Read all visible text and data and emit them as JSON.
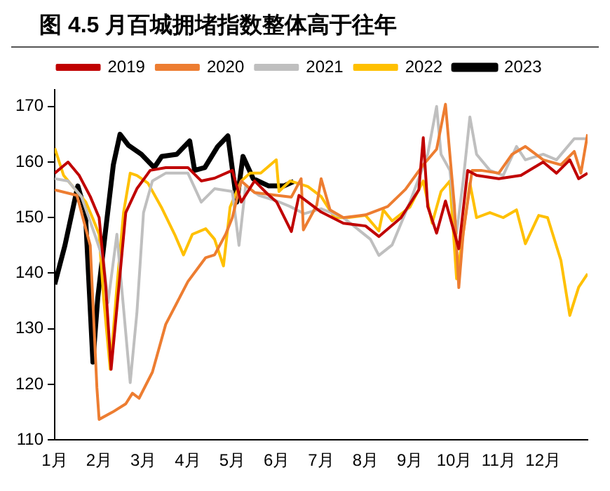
{
  "chart_data": {
    "type": "line",
    "title": "图 4.5 月百城拥堵指数整体高于往年",
    "xlim": [
      1,
      13
    ],
    "xticks": [
      {
        "value": 1,
        "label": "1月"
      },
      {
        "value": 2,
        "label": "2月"
      },
      {
        "value": 3,
        "label": "3月"
      },
      {
        "value": 4,
        "label": "4月"
      },
      {
        "value": 5,
        "label": "5月"
      },
      {
        "value": 6,
        "label": "6月"
      },
      {
        "value": 7,
        "label": "7月"
      },
      {
        "value": 8,
        "label": "8月"
      },
      {
        "value": 9,
        "label": "9月"
      },
      {
        "value": 10,
        "label": "10月"
      },
      {
        "value": 11,
        "label": "11月"
      },
      {
        "value": 12,
        "label": "12月"
      }
    ],
    "ylim": [
      110,
      173
    ],
    "yticks": [
      110,
      120,
      130,
      140,
      150,
      160,
      170
    ],
    "grid": false,
    "legend": "top",
    "marker": "none",
    "line_style": "solid",
    "series": [
      {
        "name": "2019",
        "color": "#c00000",
        "x": [
          1.0,
          1.3,
          1.55,
          1.8,
          2.0,
          2.15,
          2.27,
          2.4,
          2.6,
          2.85,
          3.15,
          3.5,
          4.0,
          4.3,
          4.6,
          5.0,
          5.2,
          5.5,
          5.8,
          6.0,
          6.33,
          6.5,
          7.0,
          7.5,
          8.0,
          8.3,
          8.8,
          9.2,
          9.3,
          9.4,
          9.6,
          9.8,
          10.1,
          10.3,
          10.5,
          11.0,
          11.5,
          12.0,
          12.3,
          12.6,
          12.8,
          13.0
        ],
        "values": [
          158,
          160,
          157.6,
          153.8,
          150,
          137.5,
          122.7,
          133.7,
          150.9,
          155.2,
          158.5,
          159,
          159,
          156.6,
          157.1,
          158.5,
          152.8,
          156.6,
          154.2,
          152.8,
          147.5,
          154,
          151,
          149,
          148.5,
          146.6,
          150,
          155,
          164.4,
          152,
          147.2,
          153,
          144.4,
          158.5,
          157.6,
          157,
          157.6,
          160,
          158,
          160.4,
          157,
          158
        ]
      },
      {
        "name": "2020",
        "color": "#ed7d31",
        "x": [
          1.0,
          1.5,
          1.8,
          1.95,
          2.0,
          2.3,
          2.6,
          2.75,
          2.9,
          3.2,
          3.5,
          4.0,
          4.4,
          4.6,
          4.85,
          5.0,
          5.2,
          5.5,
          6.0,
          6.33,
          6.55,
          6.6,
          6.9,
          7.0,
          7.2,
          7.5,
          8.0,
          8.5,
          8.9,
          9.3,
          9.6,
          9.8,
          10.0,
          10.1,
          10.2,
          10.4,
          10.6,
          11.0,
          11.3,
          11.6,
          12.0,
          12.4,
          12.7,
          12.85,
          13.0
        ],
        "values": [
          155,
          154,
          145,
          119.4,
          113.7,
          115,
          116.5,
          118.4,
          117.5,
          122.2,
          130.8,
          138.5,
          142.8,
          143.3,
          147,
          150,
          156.6,
          154.5,
          154,
          153.7,
          157,
          147.8,
          152.2,
          157,
          151.4,
          150,
          150.5,
          152,
          155.1,
          159.5,
          162.3,
          170.4,
          152.2,
          137.4,
          147.2,
          158.5,
          158.5,
          158,
          161.4,
          162.8,
          160.4,
          159.5,
          161.9,
          158,
          165
        ]
      },
      {
        "name": "2021",
        "color": "#bfbfbf",
        "x": [
          1.0,
          1.3,
          1.6,
          1.9,
          2.1,
          2.2,
          2.4,
          2.55,
          2.7,
          2.85,
          3.0,
          3.2,
          3.5,
          4.0,
          4.3,
          4.6,
          5.0,
          5.15,
          5.3,
          5.6,
          6.0,
          6.3,
          6.62,
          7.0,
          7.5,
          8.11,
          8.3,
          8.6,
          9.0,
          9.4,
          9.6,
          9.7,
          9.9,
          10.05,
          10.2,
          10.35,
          10.5,
          10.8,
          11.1,
          11.4,
          11.6,
          12.0,
          12.3,
          12.7,
          13.0
        ],
        "values": [
          157,
          156.6,
          153.8,
          147,
          142.3,
          134.7,
          147,
          133.7,
          120.3,
          132.8,
          150.9,
          156.6,
          158,
          158,
          152.8,
          155.2,
          154.7,
          145,
          155.7,
          154,
          153,
          152,
          150.7,
          151.6,
          150,
          146.1,
          143.2,
          145.1,
          152.8,
          161.4,
          170,
          161.4,
          158.5,
          147.2,
          156.7,
          168.1,
          161.4,
          158.5,
          157.6,
          162.8,
          160.4,
          161.4,
          160.4,
          164.2,
          164.2
        ]
      },
      {
        "name": "2022",
        "color": "#ffc000",
        "x": [
          1.0,
          1.2,
          1.5,
          1.7,
          1.85,
          2.0,
          2.1,
          2.25,
          2.4,
          2.55,
          2.7,
          2.85,
          3.1,
          3.4,
          3.7,
          3.9,
          4.1,
          4.4,
          4.6,
          4.8,
          4.95,
          5.2,
          5.4,
          5.64,
          5.99,
          6.05,
          6.3,
          6.7,
          7.0,
          7.3,
          7.6,
          8.0,
          8.3,
          8.4,
          8.6,
          9.0,
          9.3,
          9.5,
          9.7,
          9.9,
          10.05,
          10.2,
          10.35,
          10.5,
          10.8,
          11.1,
          11.4,
          11.6,
          11.9,
          12.1,
          12.4,
          12.6,
          12.8,
          13.0
        ],
        "values": [
          162.5,
          157.6,
          154.7,
          152.8,
          150,
          147,
          135.6,
          122.7,
          137.5,
          150.9,
          158,
          157.6,
          156.2,
          151.9,
          147,
          143.3,
          147,
          148,
          146.1,
          141.3,
          151.9,
          156.6,
          158,
          158,
          160.4,
          154.7,
          156.6,
          155.6,
          153.8,
          150,
          150,
          150.4,
          147.6,
          151.4,
          149.4,
          151.9,
          156.6,
          149,
          154.7,
          156.6,
          139,
          147.2,
          156.2,
          150,
          150.9,
          150,
          151.4,
          145.3,
          150.4,
          150,
          142.3,
          132.4,
          137.5,
          139.9
        ]
      },
      {
        "name": "2023",
        "color": "#000000",
        "x": [
          1.0,
          1.23,
          1.52,
          1.69,
          1.86,
          1.97,
          2.15,
          2.32,
          2.47,
          2.66,
          2.95,
          3.24,
          3.41,
          3.75,
          4.04,
          4.15,
          4.38,
          4.67,
          4.9,
          5.1,
          5.24,
          5.47,
          5.82,
          6.16,
          6.38
        ],
        "values": [
          138,
          145,
          155.7,
          151,
          124,
          135.6,
          148,
          159.5,
          165,
          163,
          161.4,
          159,
          161,
          161.4,
          163.8,
          158.5,
          159,
          162.8,
          164.7,
          152.8,
          161,
          157,
          155.7,
          155.7,
          156.5
        ]
      }
    ]
  }
}
